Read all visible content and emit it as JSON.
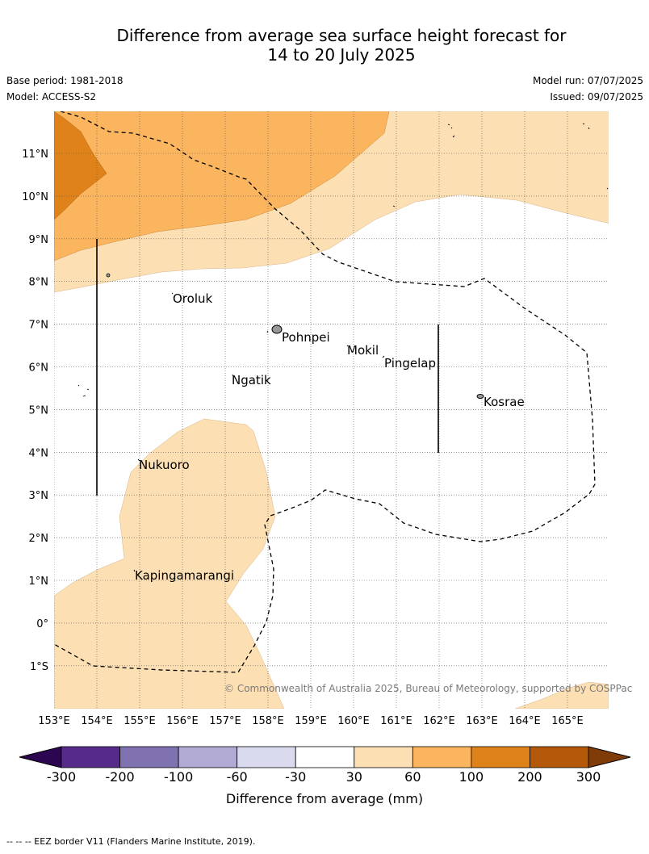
{
  "title_line1": "Difference from average sea surface height forecast for",
  "title_line2": "14 to 20 July 2025",
  "base_period": "Base period: 1981-2018",
  "model": "Model: ACCESS-S2",
  "model_run": "Model run: 07/07/2025",
  "issued": "Issued: 09/07/2025",
  "copyright": "© Commonwealth of Australia 2025, Bureau of Meteorology, supported by COSPPac",
  "lat_labels": [
    "11°N",
    "10°N",
    "9°N",
    "8°N",
    "7°N",
    "6°N",
    "5°N",
    "4°N",
    "3°N",
    "2°N",
    "1°N",
    "0°",
    "1°S"
  ],
  "lon_labels": [
    "153°E",
    "154°E",
    "155°E",
    "156°E",
    "157°E",
    "158°E",
    "159°E",
    "160°E",
    "161°E",
    "162°E",
    "163°E",
    "164°E",
    "165°E"
  ],
  "places": {
    "oroluk": "Oroluk",
    "pohnpei": "Pohnpei",
    "mokil": "Mokil",
    "pingelap": "Pingelap",
    "ngatik": "Ngatik",
    "kosrae": "Kosrae",
    "nukuoro": "Nukuoro",
    "kapingamarangi": "Kapingamarangi"
  },
  "colorbar": {
    "ticks": [
      "-300",
      "-200",
      "-100",
      "-60",
      "-30",
      "30",
      "60",
      "100",
      "200",
      "300"
    ],
    "colors": [
      "#562a8a",
      "#8072b0",
      "#b1aad2",
      "#d9daed",
      "#ffffff",
      "#fddfb4",
      "#fbb55f",
      "#e0821a",
      "#b35909"
    ],
    "under_color": "#2d0651",
    "over_color": "#7f3b08",
    "label": "Difference from average (mm)"
  },
  "footer": "--  --  -- EEZ border V11 (Flanders Marine Institute, 2019)."
}
